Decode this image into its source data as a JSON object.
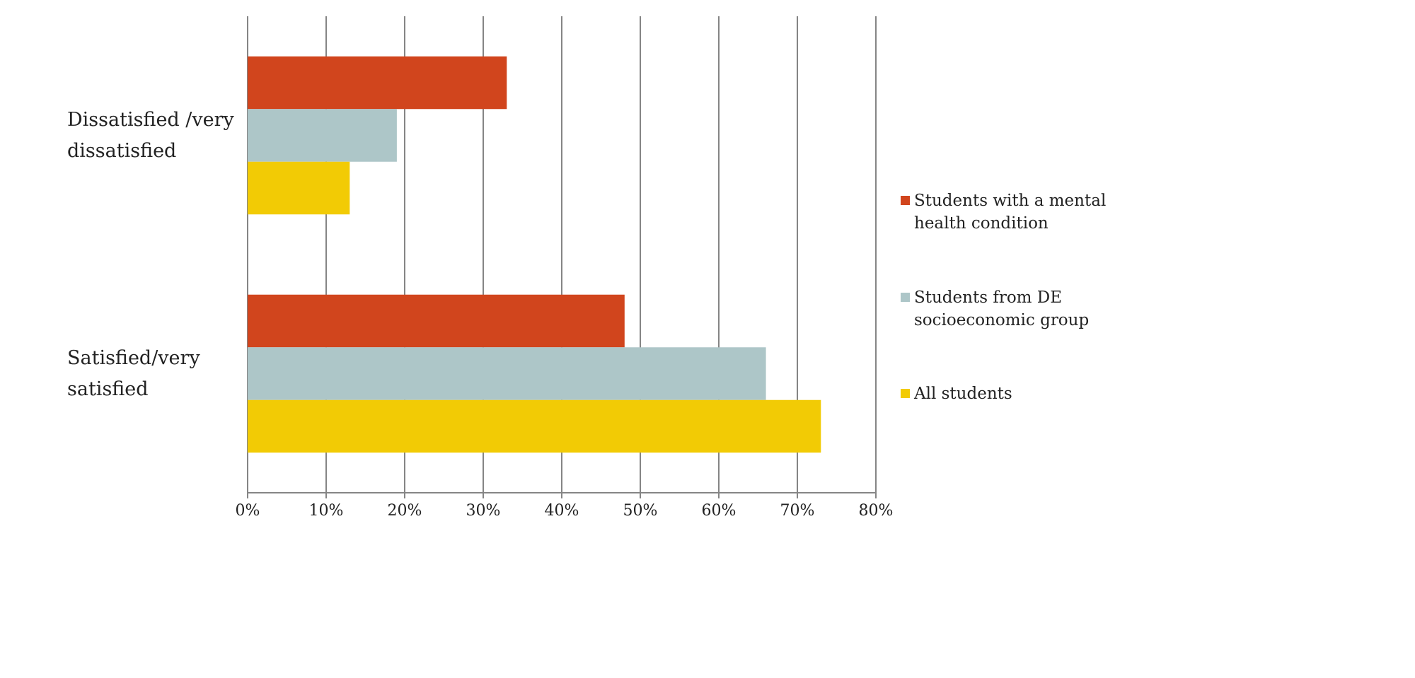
{
  "chart_data": {
    "type": "hbar",
    "categories": [
      "Dissatisfied /very dissatisfied",
      "Satisfied/very satisfied"
    ],
    "series": [
      {
        "name": "Students with a mental health condition",
        "color": "#d1451d",
        "values": [
          33,
          48
        ]
      },
      {
        "name": "Students from DE socioeconomic group",
        "color": "#adc6c8",
        "values": [
          19,
          66
        ]
      },
      {
        "name": "All students",
        "color": "#f2cb05",
        "values": [
          13,
          73
        ]
      }
    ],
    "xlim": [
      0,
      80
    ],
    "xticks": [
      {
        "value": 0,
        "label": "0%"
      },
      {
        "value": 10,
        "label": "10%"
      },
      {
        "value": 20,
        "label": "20%"
      },
      {
        "value": 30,
        "label": "30%"
      },
      {
        "value": 40,
        "label": "40%"
      },
      {
        "value": 50,
        "label": "50%"
      },
      {
        "value": 60,
        "label": "60%"
      },
      {
        "value": 70,
        "label": "70%"
      },
      {
        "value": 80,
        "label": "80%"
      }
    ],
    "grid": true,
    "legend": "right"
  }
}
